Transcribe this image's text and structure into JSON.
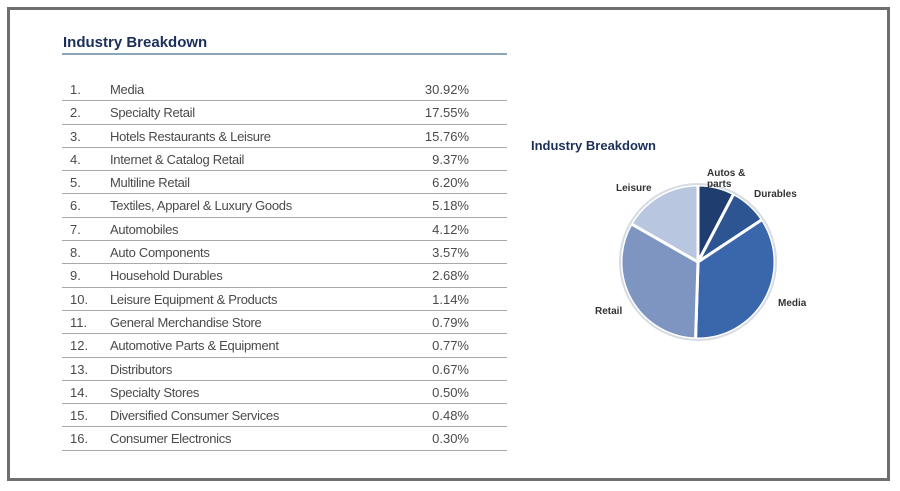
{
  "table": {
    "title": "Industry Breakdown",
    "rows": [
      {
        "rank": "1.",
        "name": "Media",
        "pct": "30.92%"
      },
      {
        "rank": "2.",
        "name": "Specialty Retail",
        "pct": "17.55%"
      },
      {
        "rank": "3.",
        "name": "Hotels Restaurants & Leisure",
        "pct": "15.76%"
      },
      {
        "rank": "4.",
        "name": "Internet & Catalog Retail",
        "pct": "9.37%"
      },
      {
        "rank": "5.",
        "name": "Multiline Retail",
        "pct": "6.20%"
      },
      {
        "rank": "6.",
        "name": "Textiles, Apparel & Luxury Goods",
        "pct": "5.18%"
      },
      {
        "rank": "7.",
        "name": "Automobiles",
        "pct": "4.12%"
      },
      {
        "rank": "8.",
        "name": "Auto Components",
        "pct": "3.57%"
      },
      {
        "rank": "9.",
        "name": "Household Durables",
        "pct": "2.68%"
      },
      {
        "rank": "10.",
        "name": "Leisure Equipment & Products",
        "pct": "1.14%"
      },
      {
        "rank": "11.",
        "name": "General Merchandise Store",
        "pct": "0.79%"
      },
      {
        "rank": "12.",
        "name": "Automotive Parts & Equipment",
        "pct": "0.77%"
      },
      {
        "rank": "13.",
        "name": "Distributors",
        "pct": "0.67%"
      },
      {
        "rank": "14.",
        "name": "Specialty Stores",
        "pct": "0.50%"
      },
      {
        "rank": "15.",
        "name": "Diversified Consumer Services",
        "pct": "0.48%"
      },
      {
        "rank": "16.",
        "name": "Consumer Electronics",
        "pct": "0.30%"
      }
    ]
  },
  "chart_data": {
    "type": "pie",
    "title": "Industry Breakdown",
    "categories": [
      "Autos & parts",
      "Durables",
      "Media",
      "Retail",
      "Leisure"
    ],
    "values": [
      7.69,
      8.01,
      34.81,
      32.77,
      16.73
    ],
    "colors": [
      "#1f3d6e",
      "#2c5592",
      "#3a66ac",
      "#7e95c2",
      "#b9c6e0"
    ],
    "legend": "labels on slices"
  }
}
